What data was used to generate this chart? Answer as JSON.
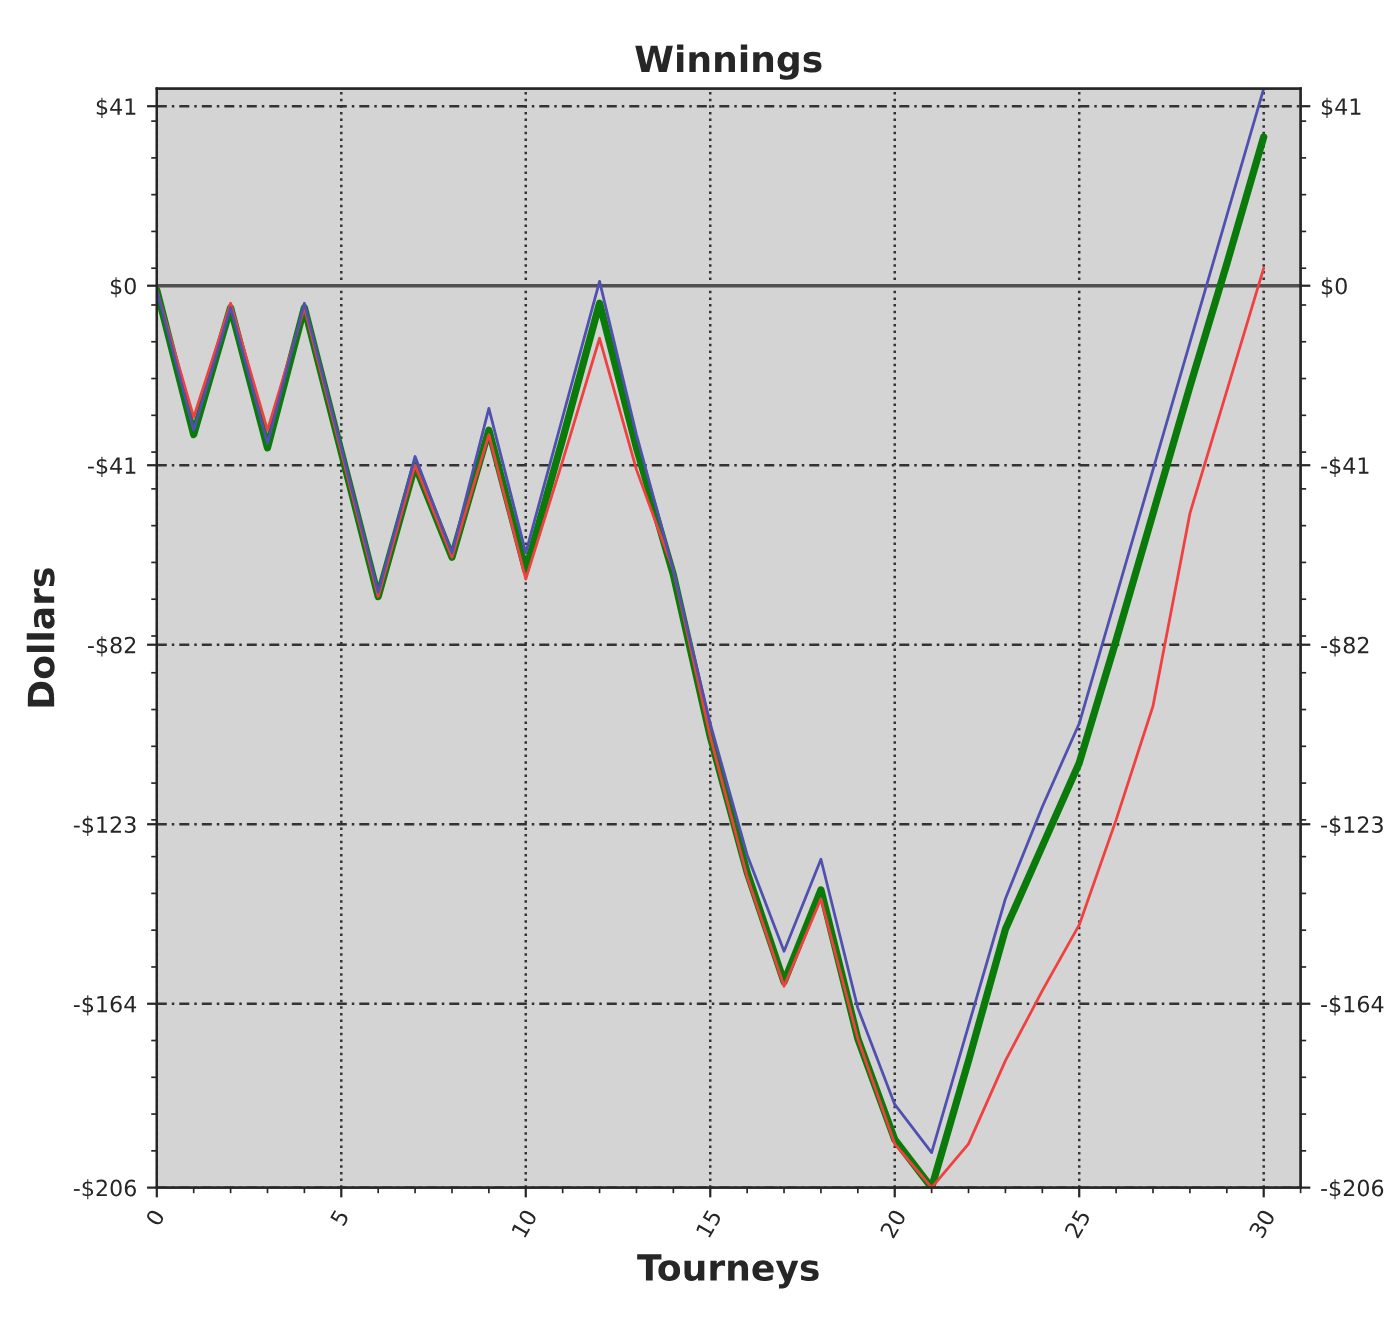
{
  "chart_data": {
    "type": "line",
    "title": "Winnings",
    "xlabel": "Tourneys",
    "ylabel": "Dollars",
    "x": [
      0,
      1,
      2,
      3,
      4,
      5,
      6,
      7,
      8,
      9,
      10,
      11,
      12,
      13,
      14,
      15,
      16,
      17,
      18,
      19,
      20,
      21,
      22,
      23,
      24,
      25,
      26,
      27,
      28,
      29,
      30
    ],
    "series": [
      {
        "color": "#0a7a0a",
        "values": [
          -1,
          -34,
          -5,
          -37,
          -5,
          -38,
          -71,
          -41,
          -62,
          -33,
          -65,
          -35,
          -4,
          -37,
          -66,
          -103,
          -134,
          -159,
          -138,
          -172,
          -195,
          -206,
          -177,
          -147,
          -128,
          -109,
          -81,
          -52,
          -23,
          5,
          34
        ]
      },
      {
        "color": "#f04040",
        "values": [
          -1,
          -30,
          -4,
          -33,
          -5,
          -38,
          -71,
          -41,
          -62,
          -34,
          -67,
          -40,
          -12,
          -42,
          -65,
          -103,
          -135,
          -160,
          -140,
          -172,
          -196,
          -206,
          -196,
          -177,
          -161,
          -146,
          -122,
          -96,
          -52,
          -24,
          4
        ]
      },
      {
        "color": "#5050b0",
        "values": [
          -1,
          -33,
          -5,
          -36,
          -4,
          -37,
          -70,
          -39,
          -61,
          -28,
          -61,
          -30,
          1,
          -34,
          -65,
          -100,
          -130,
          -152,
          -131,
          -165,
          -187,
          -198,
          -169,
          -140,
          -119,
          -100,
          -71,
          -42,
          -13,
          16,
          45
        ]
      }
    ],
    "xlim": [
      0,
      31
    ],
    "xticks": [
      0,
      5,
      10,
      15,
      20,
      25,
      30
    ],
    "ylim": [
      -206,
      45
    ],
    "yticks": [
      {
        "value": 41,
        "label": "$41"
      },
      {
        "value": 0,
        "label": "$0"
      },
      {
        "value": -41,
        "label": "-$41"
      },
      {
        "value": -82,
        "label": "-$82"
      },
      {
        "value": -123,
        "label": "-$123"
      },
      {
        "value": -164,
        "label": "-$164"
      },
      {
        "value": -206,
        "label": "-$206"
      }
    ],
    "y2lim": [
      -206,
      45
    ],
    "y2ticks": [
      {
        "value": 41,
        "label": "$41"
      },
      {
        "value": 0,
        "label": "$0"
      },
      {
        "value": -41,
        "label": "-$41"
      },
      {
        "value": -82,
        "label": "-$82"
      },
      {
        "value": -123,
        "label": "-$123"
      },
      {
        "value": -164,
        "label": "-$164"
      },
      {
        "value": -206,
        "label": "-$206"
      }
    ],
    "ref_lines": [
      {
        "axis": "y",
        "value": 0,
        "color": "#505050",
        "line_style": "solid"
      }
    ],
    "grid": true,
    "marker": "none",
    "line_style": "solid"
  }
}
